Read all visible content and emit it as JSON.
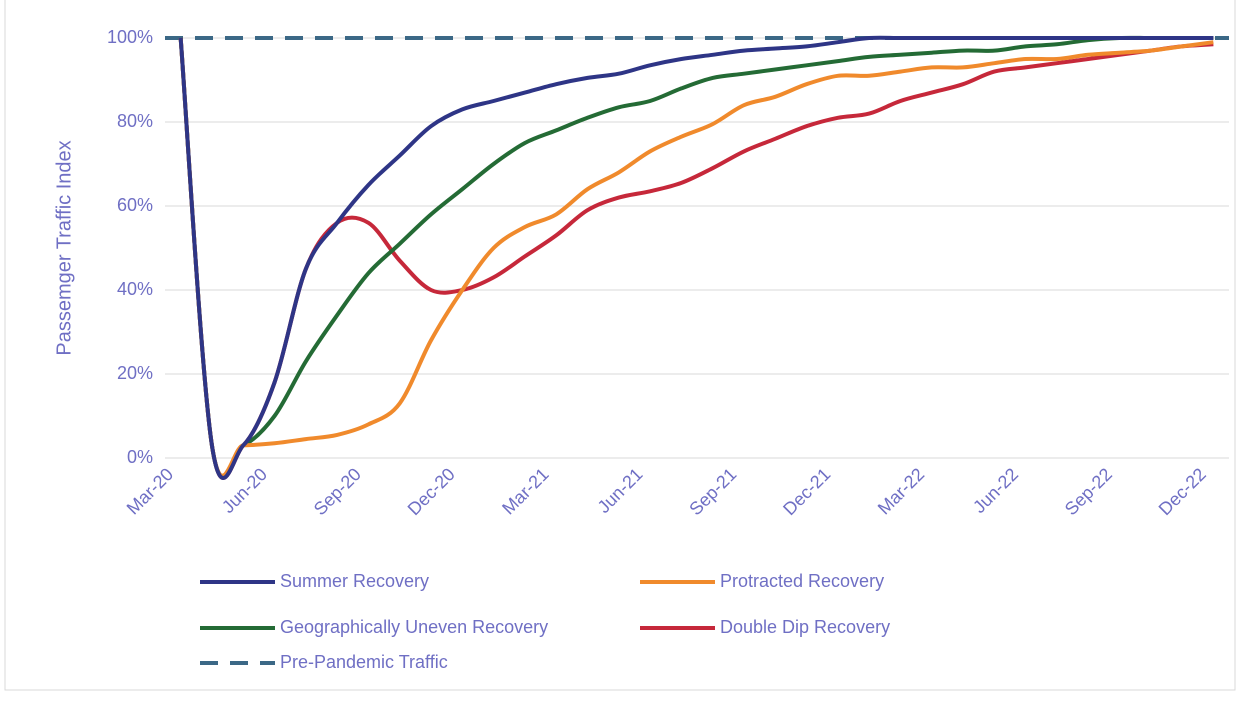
{
  "chart_data": {
    "type": "line",
    "y_label": "Passemger Traffic Index",
    "categories": [
      "Mar-20",
      null,
      null,
      "Jun-20",
      null,
      null,
      "Sep-20",
      null,
      null,
      "Dec-20",
      null,
      null,
      "Mar-21",
      null,
      null,
      "Jun-21",
      null,
      null,
      "Sep-21",
      null,
      null,
      "Dec-21",
      null,
      null,
      "Mar-22",
      null,
      null,
      "Jun-22",
      null,
      null,
      "Sep-22",
      null,
      null,
      "Dec-22"
    ],
    "series": [
      {
        "name": "Summer Recovery",
        "color": "#2e3586",
        "values": [
          100,
          3,
          3,
          18,
          45,
          56,
          65,
          72,
          79,
          83,
          85,
          87,
          89,
          90.5,
          91.5,
          93.5,
          95,
          96,
          97,
          97.5,
          98,
          99,
          100,
          100,
          100,
          100,
          100,
          100,
          100,
          100,
          100,
          100,
          100,
          100
        ]
      },
      {
        "name": "Protracted Recovery",
        "color": "#f08a2c",
        "values": [
          100,
          3,
          3,
          3.5,
          4.5,
          5.5,
          8,
          13,
          28,
          40,
          50,
          55,
          58,
          64,
          68,
          73,
          76.5,
          79.5,
          84,
          86,
          89,
          91,
          91,
          92,
          93,
          93,
          94,
          95,
          95,
          96,
          96.5,
          97,
          98,
          99
        ]
      },
      {
        "name": "Geographically Uneven Recovery",
        "color": "#246b35",
        "values": [
          100,
          3,
          3,
          10,
          23,
          34,
          44,
          51,
          58,
          64,
          70,
          75,
          78,
          81,
          83.5,
          85,
          88,
          90.5,
          91.5,
          92.5,
          93.5,
          94.5,
          95.5,
          96,
          96.5,
          97,
          97,
          98,
          98.5,
          99.5,
          100,
          100,
          100,
          100
        ]
      },
      {
        "name": "Double Dip Recovery",
        "color": "#c6283a",
        "values": [
          100,
          3,
          3,
          18,
          45,
          56,
          56,
          47,
          40,
          40,
          43,
          48,
          53,
          59,
          62,
          63.5,
          65.5,
          69,
          73,
          76,
          79,
          81,
          82,
          85,
          87,
          89,
          92,
          93,
          94,
          95,
          96,
          97,
          98,
          98.5
        ]
      },
      {
        "name": "Pre-Pandemic Traffic",
        "color": "#3b6886",
        "dashed": true,
        "values": [
          100,
          100,
          100,
          100,
          100,
          100,
          100,
          100,
          100,
          100,
          100,
          100,
          100,
          100,
          100,
          100,
          100,
          100,
          100,
          100,
          100,
          100,
          100,
          100,
          100,
          100,
          100,
          100,
          100,
          100,
          100,
          100,
          100,
          100
        ]
      }
    ],
    "ylim": [
      0,
      100
    ],
    "yticks": [
      {
        "value": 0,
        "label": "0%"
      },
      {
        "value": 20,
        "label": "20%"
      },
      {
        "value": 40,
        "label": "40%"
      },
      {
        "value": 60,
        "label": "60%"
      },
      {
        "value": 80,
        "label": "80%"
      },
      {
        "value": 100,
        "label": "100%"
      }
    ],
    "grid": true,
    "legend": "bottom"
  }
}
